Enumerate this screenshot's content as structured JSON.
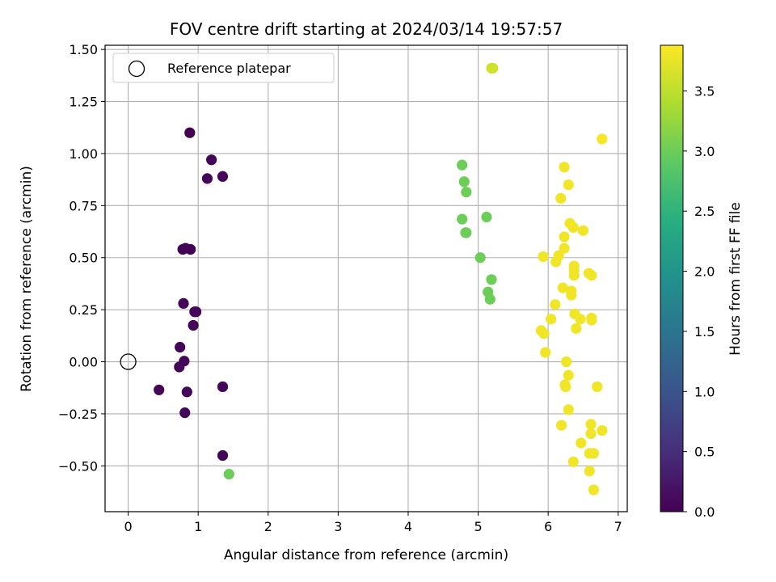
{
  "chart_data": {
    "type": "scatter",
    "title": "FOV centre drift starting at 2024/03/14 19:57:57",
    "xlabel": "Angular distance from reference (arcmin)",
    "ylabel": "Rotation from reference (arcmin)",
    "xlim": [
      -0.33,
      7.13
    ],
    "ylim": [
      -0.72,
      1.52
    ],
    "xticks": [
      "0",
      "1",
      "2",
      "3",
      "4",
      "5",
      "6",
      "7"
    ],
    "yticks": [
      "1.50",
      "1.25",
      "1.00",
      "0.75",
      "0.50",
      "0.25",
      "0.00",
      "−0.25",
      "−0.50"
    ],
    "ytick_values": [
      1.5,
      1.25,
      1.0,
      0.75,
      0.5,
      0.25,
      0.0,
      -0.25,
      -0.5
    ],
    "grid": true,
    "legend": {
      "position": "top-left",
      "label": "Reference platepar"
    },
    "reference_point": {
      "x": 0.0,
      "y": 0.0
    },
    "colorbar": {
      "label": "Hours from first FF file",
      "colormap": "viridis",
      "range": [
        0.0,
        3.88
      ],
      "tick_labels": [
        "3.5",
        "3.0",
        "2.5",
        "2.0",
        "1.5",
        "1.0",
        "0.5",
        "0.0"
      ],
      "tick_values": [
        3.5,
        3.0,
        2.5,
        2.0,
        1.5,
        1.0,
        0.5,
        0.0
      ]
    },
    "points": [
      {
        "x": 0.88,
        "y": 1.1,
        "h": 0.0
      },
      {
        "x": 1.19,
        "y": 0.97,
        "h": 0.05
      },
      {
        "x": 1.13,
        "y": 0.88,
        "h": 0.05
      },
      {
        "x": 1.35,
        "y": 0.89,
        "h": 0.05
      },
      {
        "x": 0.78,
        "y": 0.54,
        "h": 0.03
      },
      {
        "x": 0.82,
        "y": 0.545,
        "h": 0.03
      },
      {
        "x": 0.89,
        "y": 0.54,
        "h": 0.03
      },
      {
        "x": 0.79,
        "y": 0.28,
        "h": 0.05
      },
      {
        "x": 0.95,
        "y": 0.24,
        "h": 0.05
      },
      {
        "x": 0.97,
        "y": 0.24,
        "h": 0.05
      },
      {
        "x": 0.93,
        "y": 0.175,
        "h": 0.05
      },
      {
        "x": 0.74,
        "y": 0.07,
        "h": 0.05
      },
      {
        "x": 0.8,
        "y": 0.003,
        "h": 0.05
      },
      {
        "x": 0.73,
        "y": -0.025,
        "h": 0.05
      },
      {
        "x": 0.44,
        "y": -0.135,
        "h": 0.05
      },
      {
        "x": 0.84,
        "y": -0.145,
        "h": 0.05
      },
      {
        "x": 1.35,
        "y": -0.12,
        "h": 0.05
      },
      {
        "x": 0.81,
        "y": -0.245,
        "h": 0.05
      },
      {
        "x": 1.35,
        "y": -0.45,
        "h": 0.05
      },
      {
        "x": 1.44,
        "y": -0.54,
        "h": 3.0
      },
      {
        "x": 4.77,
        "y": 0.945,
        "h": 3.0
      },
      {
        "x": 4.8,
        "y": 0.865,
        "h": 3.0
      },
      {
        "x": 4.83,
        "y": 0.815,
        "h": 3.0
      },
      {
        "x": 4.77,
        "y": 0.685,
        "h": 3.0
      },
      {
        "x": 4.82,
        "y": 0.62,
        "h": 3.0
      },
      {
        "x": 4.83,
        "y": 0.62,
        "h": 3.0
      },
      {
        "x": 5.12,
        "y": 0.695,
        "h": 3.0
      },
      {
        "x": 5.03,
        "y": 0.5,
        "h": 3.0
      },
      {
        "x": 5.19,
        "y": 0.395,
        "h": 3.0
      },
      {
        "x": 5.14,
        "y": 0.335,
        "h": 3.0
      },
      {
        "x": 5.17,
        "y": 0.3,
        "h": 3.0
      },
      {
        "x": 5.19,
        "y": 1.41,
        "h": 3.6
      },
      {
        "x": 5.21,
        "y": 1.41,
        "h": 3.6
      },
      {
        "x": 6.77,
        "y": 1.07,
        "h": 3.85
      },
      {
        "x": 6.23,
        "y": 0.935,
        "h": 3.8
      },
      {
        "x": 6.29,
        "y": 0.85,
        "h": 3.8
      },
      {
        "x": 6.18,
        "y": 0.785,
        "h": 3.8
      },
      {
        "x": 6.31,
        "y": 0.665,
        "h": 3.8
      },
      {
        "x": 6.36,
        "y": 0.645,
        "h": 3.8
      },
      {
        "x": 6.5,
        "y": 0.63,
        "h": 3.8
      },
      {
        "x": 6.23,
        "y": 0.6,
        "h": 3.8
      },
      {
        "x": 6.23,
        "y": 0.545,
        "h": 3.8
      },
      {
        "x": 6.15,
        "y": 0.51,
        "h": 3.8
      },
      {
        "x": 6.11,
        "y": 0.48,
        "h": 3.8
      },
      {
        "x": 5.93,
        "y": 0.505,
        "h": 3.8
      },
      {
        "x": 6.37,
        "y": 0.46,
        "h": 3.8
      },
      {
        "x": 6.37,
        "y": 0.44,
        "h": 3.8
      },
      {
        "x": 6.37,
        "y": 0.415,
        "h": 3.8
      },
      {
        "x": 6.58,
        "y": 0.425,
        "h": 3.8
      },
      {
        "x": 6.62,
        "y": 0.415,
        "h": 3.8
      },
      {
        "x": 6.21,
        "y": 0.355,
        "h": 3.8
      },
      {
        "x": 6.33,
        "y": 0.34,
        "h": 3.8
      },
      {
        "x": 6.33,
        "y": 0.32,
        "h": 3.8
      },
      {
        "x": 6.1,
        "y": 0.275,
        "h": 3.8
      },
      {
        "x": 6.38,
        "y": 0.23,
        "h": 3.8
      },
      {
        "x": 6.46,
        "y": 0.205,
        "h": 3.8
      },
      {
        "x": 6.62,
        "y": 0.21,
        "h": 3.8
      },
      {
        "x": 6.62,
        "y": 0.2,
        "h": 3.8
      },
      {
        "x": 6.04,
        "y": 0.205,
        "h": 3.8
      },
      {
        "x": 6.4,
        "y": 0.16,
        "h": 3.8
      },
      {
        "x": 5.9,
        "y": 0.15,
        "h": 3.8
      },
      {
        "x": 5.94,
        "y": 0.135,
        "h": 3.8
      },
      {
        "x": 5.96,
        "y": 0.045,
        "h": 3.8
      },
      {
        "x": 6.26,
        "y": 0.0,
        "h": 3.8
      },
      {
        "x": 6.29,
        "y": -0.065,
        "h": 3.8
      },
      {
        "x": 6.24,
        "y": -0.11,
        "h": 3.8
      },
      {
        "x": 6.25,
        "y": -0.12,
        "h": 3.8
      },
      {
        "x": 6.7,
        "y": -0.12,
        "h": 3.8
      },
      {
        "x": 6.29,
        "y": -0.23,
        "h": 3.8
      },
      {
        "x": 6.19,
        "y": -0.305,
        "h": 3.8
      },
      {
        "x": 6.61,
        "y": -0.3,
        "h": 3.8
      },
      {
        "x": 6.61,
        "y": -0.345,
        "h": 3.8
      },
      {
        "x": 6.77,
        "y": -0.33,
        "h": 3.8
      },
      {
        "x": 6.47,
        "y": -0.39,
        "h": 3.8
      },
      {
        "x": 6.59,
        "y": -0.44,
        "h": 3.8
      },
      {
        "x": 6.65,
        "y": -0.44,
        "h": 3.8
      },
      {
        "x": 6.36,
        "y": -0.48,
        "h": 3.8
      },
      {
        "x": 6.59,
        "y": -0.525,
        "h": 3.8
      },
      {
        "x": 6.65,
        "y": -0.615,
        "h": 3.8
      }
    ]
  }
}
